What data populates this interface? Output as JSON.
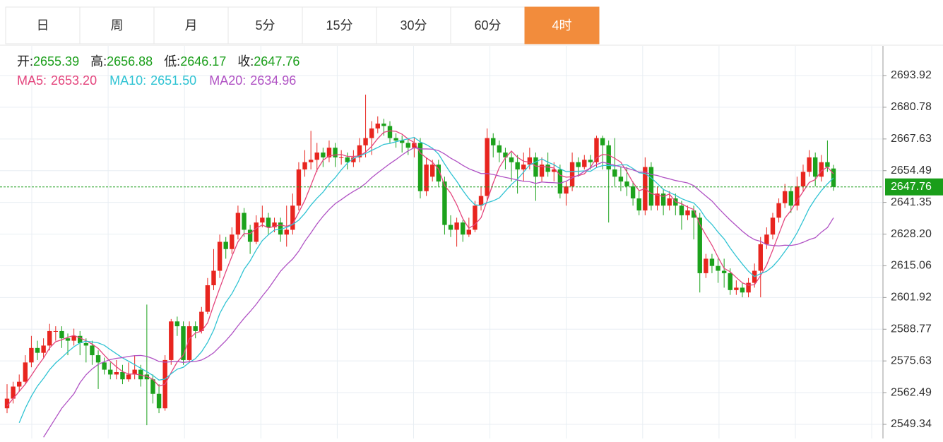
{
  "tabs": [
    "日",
    "周",
    "月",
    "5分",
    "15分",
    "30分",
    "60分",
    "4时"
  ],
  "active_tab": 7,
  "chart_data": {
    "type": "candlestick",
    "up_color": "#e8251f",
    "down_color": "#1ca21c",
    "summary_color": "#1a9e1a",
    "summary": [
      {
        "label": "开:",
        "value": "2655.39"
      },
      {
        "label": "高:",
        "value": "2656.88"
      },
      {
        "label": "低:",
        "value": "2646.17"
      },
      {
        "label": "收:",
        "value": "2647.76"
      }
    ],
    "ylim": [
      2543.49,
      2706.21
    ],
    "yticks": [
      2549.34,
      2562.49,
      2575.63,
      2588.77,
      2601.92,
      2615.06,
      {
        "value": 2628.2,
        "label": "2628.20"
      },
      2641.35,
      2654.49,
      2667.63,
      2680.78,
      2693.92
    ],
    "grid": true,
    "last_price_line": true,
    "open": [
      2556,
      2560,
      2565,
      2567,
      2575,
      2581,
      2579,
      2582,
      2588,
      2588,
      2585,
      2584,
      2586,
      2583,
      2582,
      2578,
      2575,
      2572,
      2570,
      2571,
      2568,
      2570,
      2572,
      2570,
      2568,
      2562,
      2556,
      2576,
      2592,
      2590,
      2576,
      2590,
      2588,
      2596,
      2607,
      2613,
      2625,
      2622,
      2628,
      2637,
      2630,
      2625,
      2633,
      2635,
      2631,
      2633,
      2628,
      2630,
      2640,
      2655,
      2658,
      2659,
      2662,
      2660,
      2664,
      2660,
      2660,
      2658,
      2660,
      2665,
      2668,
      2672,
      2674,
      2673,
      2668,
      2667,
      2666,
      2664,
      2666,
      2646,
      2652,
      2657,
      2650,
      2632,
      2630,
      2633,
      2628,
      2630,
      2640,
      2644,
      2668,
      2665,
      2662,
      2660,
      2658,
      2655,
      2657,
      2660,
      2652,
      2657,
      2654,
      2655,
      2645,
      2648,
      2658,
      2656,
      2659,
      2658,
      2668,
      2665,
      2655,
      2652,
      2650,
      2648,
      2643,
      2638,
      2656,
      2640,
      2645,
      2640,
      2643,
      2640,
      2636,
      2638,
      2635,
      2612,
      2618,
      2615,
      2613,
      2612,
      2605,
      2606,
      2604,
      2608,
      2613,
      2624,
      2628,
      2635,
      2641,
      2646,
      2640,
      2648,
      2654,
      2660,
      2652,
      2658,
      2655.39
    ],
    "high": [
      2566,
      2567,
      2570,
      2578,
      2586,
      2584,
      2585,
      2591,
      2590,
      2590,
      2587,
      2589,
      2588,
      2585,
      2584,
      2580,
      2577,
      2575,
      2576,
      2574,
      2575,
      2578,
      2574,
      2599,
      2570,
      2566,
      2578,
      2593,
      2594,
      2592,
      2592,
      2592,
      2598,
      2610,
      2622,
      2628,
      2627,
      2631,
      2640,
      2639,
      2632,
      2636,
      2640,
      2637,
      2635,
      2635,
      2640,
      2645,
      2658,
      2663,
      2671,
      2666,
      2664,
      2667,
      2666,
      2663,
      2662,
      2663,
      2668,
      2686,
      2675,
      2677,
      2676,
      2675,
      2670,
      2669,
      2668,
      2668,
      2668,
      2660,
      2659,
      2659,
      2652,
      2636,
      2635,
      2634,
      2635,
      2642,
      2648,
      2672,
      2670,
      2667,
      2664,
      2662,
      2661,
      2662,
      2664,
      2662,
      2660,
      2662,
      2658,
      2657,
      2650,
      2662,
      2660,
      2661,
      2661,
      2669,
      2669,
      2667,
      2668,
      2656,
      2656,
      2650,
      2646,
      2660,
      2658,
      2648,
      2647,
      2646,
      2645,
      2642,
      2640,
      2640,
      2637,
      2620,
      2620,
      2618,
      2618,
      2614,
      2609,
      2608,
      2610,
      2616,
      2627,
      2631,
      2637,
      2643,
      2649,
      2648,
      2652,
      2657,
      2663,
      2662,
      2661,
      2667,
      2656.88
    ],
    "low": [
      2554,
      2558,
      2563,
      2566,
      2573,
      2576,
      2577,
      2580,
      2584,
      2581,
      2578,
      2582,
      2578,
      2575,
      2574,
      2564,
      2570,
      2568,
      2568,
      2566,
      2567,
      2568,
      2565,
      2549,
      2558,
      2554,
      2555,
      2574,
      2586,
      2574,
      2575,
      2585,
      2587,
      2595,
      2605,
      2610,
      2618,
      2620,
      2626,
      2627,
      2620,
      2624,
      2631,
      2628,
      2629,
      2625,
      2623,
      2628,
      2638,
      2652,
      2655,
      2654,
      2656,
      2658,
      2656,
      2657,
      2655,
      2656,
      2658,
      2660,
      2661,
      2670,
      2669,
      2666,
      2664,
      2662,
      2661,
      2660,
      2643,
      2644,
      2650,
      2648,
      2628,
      2627,
      2623,
      2625,
      2627,
      2629,
      2638,
      2642,
      2660,
      2658,
      2655,
      2650,
      2645,
      2650,
      2655,
      2642,
      2650,
      2652,
      2650,
      2643,
      2640,
      2646,
      2652,
      2655,
      2655,
      2656,
      2655,
      2633,
      2648,
      2646,
      2644,
      2640,
      2636,
      2636,
      2638,
      2638,
      2636,
      2638,
      2636,
      2630,
      2634,
      2626,
      2604,
      2610,
      2612,
      2608,
      2606,
      2603,
      2603,
      2602,
      2602,
      2606,
      2602,
      2622,
      2626,
      2633,
      2639,
      2637,
      2638,
      2646,
      2652,
      2648,
      2650,
      2654,
      2646.17
    ],
    "close": [
      2560,
      2565,
      2567,
      2575,
      2581,
      2579,
      2582,
      2588,
      2588,
      2585,
      2584,
      2586,
      2583,
      2582,
      2578,
      2575,
      2572,
      2570,
      2571,
      2568,
      2570,
      2572,
      2568,
      2568,
      2562,
      2556,
      2576,
      2592,
      2590,
      2576,
      2590,
      2588,
      2596,
      2607,
      2613,
      2625,
      2622,
      2628,
      2637,
      2630,
      2625,
      2633,
      2635,
      2631,
      2633,
      2628,
      2630,
      2640,
      2655,
      2658,
      2659,
      2662,
      2660,
      2664,
      2660,
      2660,
      2658,
      2660,
      2665,
      2668,
      2672,
      2674,
      2673,
      2668,
      2667,
      2666,
      2664,
      2666,
      2646,
      2657,
      2657,
      2650,
      2632,
      2630,
      2633,
      2628,
      2630,
      2640,
      2644,
      2668,
      2665,
      2662,
      2660,
      2658,
      2655,
      2657,
      2660,
      2652,
      2657,
      2654,
      2655,
      2645,
      2648,
      2658,
      2656,
      2659,
      2658,
      2668,
      2665,
      2655,
      2652,
      2650,
      2648,
      2643,
      2638,
      2656,
      2640,
      2645,
      2640,
      2643,
      2640,
      2636,
      2638,
      2635,
      2612,
      2618,
      2615,
      2613,
      2612,
      2605,
      2606,
      2604,
      2608,
      2613,
      2624,
      2628,
      2635,
      2641,
      2646,
      2640,
      2648,
      2654,
      2660,
      2652,
      2658,
      2656,
      2647.76
    ],
    "series": [
      {
        "label": "MA5:",
        "value_label": "2653.20",
        "color": "#e4457d",
        "values": [
          2557,
          2560,
          2563,
          2566,
          2569.6,
          2573.4,
          2576.8,
          2581,
          2583.6,
          2584.4,
          2585.4,
          2586.2,
          2585.2,
          2584,
          2582.6,
          2580.8,
          2578,
          2575.4,
          2573.2,
          2571.2,
          2570.2,
          2570.2,
          2569.8,
          2569.2,
          2568,
          2565.2,
          2566,
          2570.8,
          2575.2,
          2578,
          2584.8,
          2587.2,
          2588,
          2591.4,
          2598.8,
          2605.8,
          2612.6,
          2619,
          2625,
          2628.4,
          2628.4,
          2630.6,
          2632,
          2630.8,
          2631.4,
          2632,
          2631.4,
          2632.4,
          2637.2,
          2642.2,
          2648.4,
          2654.8,
          2658.8,
          2660.6,
          2661,
          2661.2,
          2660.4,
          2660.4,
          2660.6,
          2662.2,
          2664.6,
          2667.8,
          2670.4,
          2671,
          2670.8,
          2669.6,
          2667.6,
          2666.2,
          2661.8,
          2659.8,
          2658,
          2655.2,
          2648.4,
          2645.2,
          2640.4,
          2634.6,
          2630.6,
          2632.2,
          2635,
          2642,
          2649.4,
          2655.8,
          2659.8,
          2662.6,
          2660,
          2658.4,
          2658,
          2656.4,
          2656.2,
          2656,
          2655.6,
          2652.6,
          2651.8,
          2652,
          2652.4,
          2653.2,
          2655.8,
          2659.8,
          2661.2,
          2661,
          2659.6,
          2658,
          2654,
          2649.6,
          2646.2,
          2647,
          2645,
          2644.4,
          2643.8,
          2644.8,
          2641.6,
          2640.8,
          2639.4,
          2638.4,
          2632.2,
          2627.8,
          2623.6,
          2618.6,
          2614,
          2612.6,
          2610.2,
          2608,
          2607,
          2607.2,
          2611,
          2615.4,
          2621.6,
          2628.2,
          2634.8,
          2638,
          2642,
          2645.8,
          2649.6,
          2650.8,
          2654.4,
          2656,
          2653.2
        ]
      },
      {
        "label": "MA10:",
        "value_label": "2651.50",
        "color": "#2fc3d3",
        "values": [
          null,
          null,
          2550,
          2556,
          2561,
          2565.2,
          2568.4,
          2572,
          2574.8,
          2577,
          2579.4,
          2581.5,
          2583.1,
          2583.8,
          2583.5,
          2583.1,
          2582.1,
          2580.3,
          2578.6,
          2576.9,
          2575.5,
          2574.1,
          2572.6,
          2571.2,
          2569.6,
          2567.7,
          2568.1,
          2570.3,
          2572.2,
          2573,
          2575,
          2576.6,
          2579.4,
          2583.3,
          2588.4,
          2595.3,
          2599.9,
          2603.5,
          2608.2,
          2613.6,
          2617.1,
          2621.6,
          2625.5,
          2627.9,
          2629.9,
          2630.2,
          2631,
          2632.2,
          2634,
          2636.8,
          2640.2,
          2643.1,
          2645.6,
          2648.9,
          2651.6,
          2654.8,
          2657.6,
          2659.6,
          2660.6,
          2661.6,
          2662.9,
          2664.1,
          2665.4,
          2665.8,
          2666.5,
          2667.1,
          2667.7,
          2668.3,
          2666.4,
          2665.3,
          2663.8,
          2661.4,
          2657.3,
          2653.5,
          2650.1,
          2646.3,
          2642.9,
          2640.3,
          2640.1,
          2641.2,
          2642,
          2643.2,
          2646,
          2648.8,
          2651,
          2653.9,
          2656.9,
          2658.1,
          2659.4,
          2658,
          2657,
          2655.3,
          2654.1,
          2654.1,
          2654.2,
          2654.4,
          2654.2,
          2655.8,
          2656.6,
          2656.7,
          2656.4,
          2656.9,
          2656.9,
          2655.4,
          2653.6,
          2653.3,
          2651.5,
          2649.2,
          2646.7,
          2645.5,
          2644.3,
          2642.9,
          2641.9,
          2641.1,
          2638.5,
          2634.7,
          2632.2,
          2629,
          2626.2,
          2622.4,
          2619,
          2615.8,
          2612.8,
          2610.6,
          2611.8,
          2612.8,
          2614.8,
          2617.6,
          2621,
          2624.5,
          2628.7,
          2633.7,
          2638.9,
          2642.8,
          2646.2,
          2649,
          2651.5
        ]
      },
      {
        "label": "MA20:",
        "value_label": "2634.96",
        "color": "#b052c4",
        "values": [
          null,
          null,
          null,
          null,
          null,
          null,
          2544,
          2548,
          2552,
          2556,
          2559,
          2562,
          2566.6,
          2569.9,
          2572.3,
          2574.2,
          2575.3,
          2576.2,
          2576.7,
          2577,
          2577.5,
          2577.8,
          2577.9,
          2577.5,
          2576.6,
          2575.4,
          2575.1,
          2575.3,
          2575.4,
          2575,
          2575.3,
          2575.4,
          2576,
          2577.3,
          2579,
          2581.5,
          2584,
          2586.9,
          2590.2,
          2593.3,
          2596.1,
          2599.1,
          2602.5,
          2605.6,
          2609.2,
          2612.8,
          2615.5,
          2617.9,
          2621.1,
          2625.2,
          2628.7,
          2632.4,
          2635.6,
          2638.4,
          2640.8,
          2642.5,
          2644.3,
          2645.9,
          2647.3,
          2649.2,
          2651.6,
          2653.6,
          2655.5,
          2657.4,
          2659.1,
          2661,
          2662.7,
          2664,
          2663.5,
          2663.5,
          2663.4,
          2662.8,
          2661.4,
          2659.7,
          2658.3,
          2656.7,
          2655.3,
          2654.3,
          2653.3,
          2653.3,
          2652.9,
          2652.3,
          2651.7,
          2651.2,
          2650.6,
          2650.1,
          2649.9,
          2649.2,
          2649.8,
          2649.6,
          2649.5,
          2649.3,
          2650.1,
          2651.5,
          2652.6,
          2654.2,
          2655.6,
          2657,
          2658,
          2657.4,
          2656.7,
          2656.1,
          2655.5,
          2654.8,
          2653.9,
          2653.9,
          2652.9,
          2652.5,
          2651.7,
          2651.1,
          2650.4,
          2649.9,
          2649.4,
          2648.3,
          2646.1,
          2644,
          2641.9,
          2639.1,
          2636.5,
          2634,
          2631.7,
          2629.4,
          2627.4,
          2625.9,
          2625.2,
          2623.8,
          2623.5,
          2623.3,
          2623.6,
          2623.5,
          2623.9,
          2624.8,
          2625.9,
          2626.7,
          2629,
          2630.9,
          2634.96
        ]
      }
    ]
  }
}
